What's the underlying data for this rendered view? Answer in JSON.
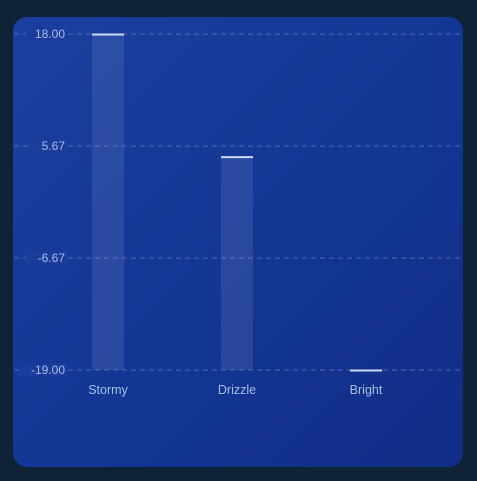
{
  "chart_data": {
    "type": "bar",
    "categories": [
      "Stormy",
      "Drizzle",
      "Bright"
    ],
    "values": [
      18.0,
      4.5,
      -19.0
    ],
    "ylim": [
      -19.0,
      18.0
    ],
    "yticks": [
      "18.00",
      "5.67",
      "-6.67",
      "-19.00"
    ],
    "ytick_values": [
      18.0,
      5.67,
      -6.67,
      -19.0
    ],
    "title": "",
    "xlabel": "",
    "ylabel": "",
    "grid": true,
    "colors": {
      "background": "#0f2236",
      "card": "#1b3fa0",
      "bar": "#ffffff",
      "bar_cap": "#cfd9f5",
      "grid": "#7d93c9",
      "text": "#a9bde6"
    }
  }
}
